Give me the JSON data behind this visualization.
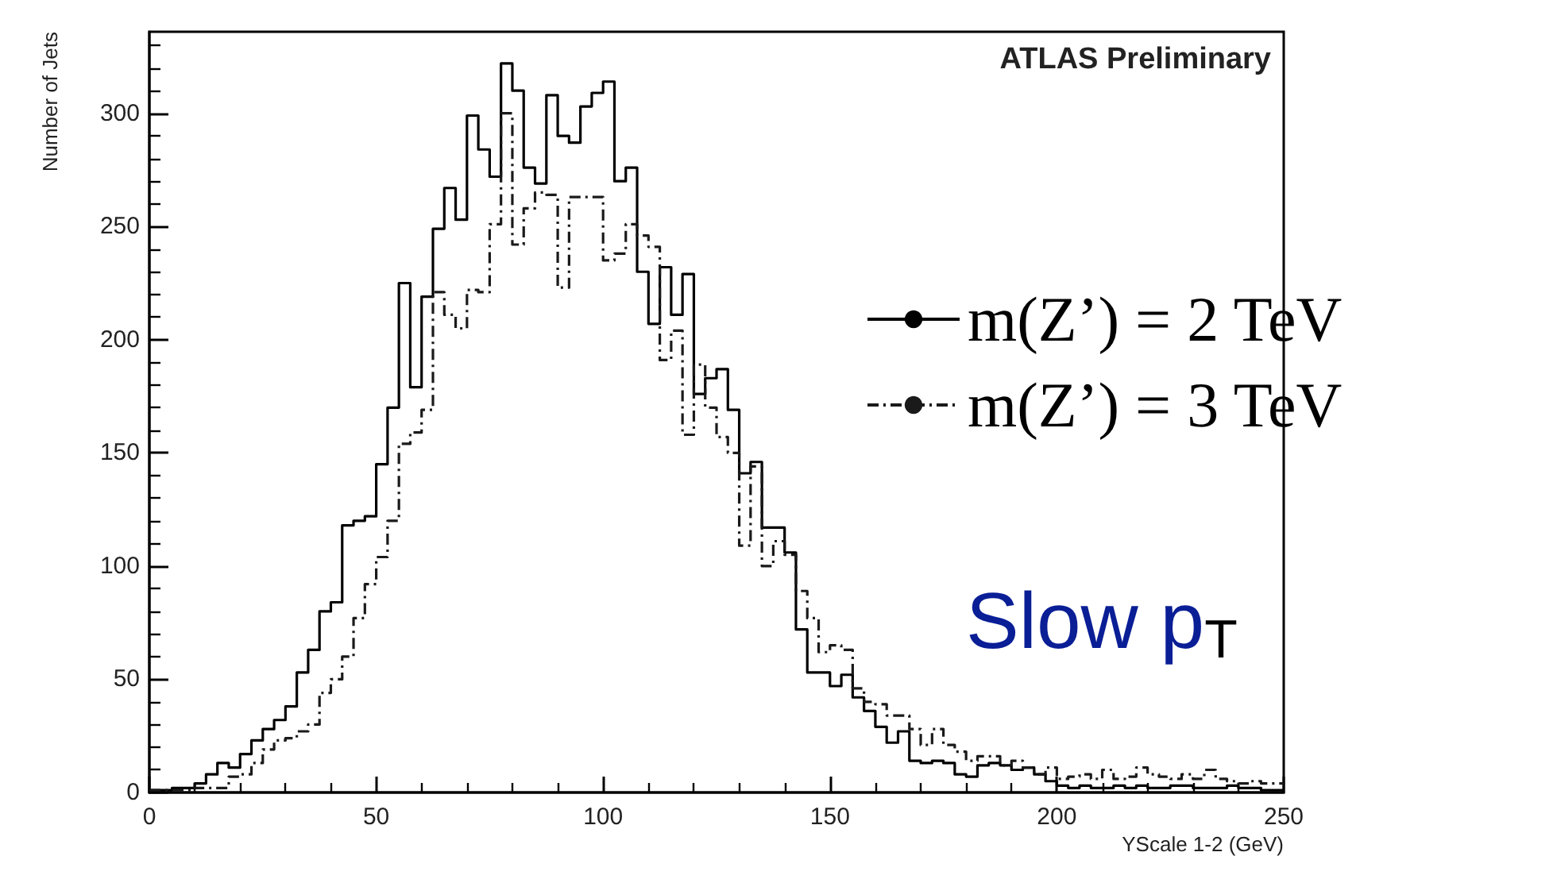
{
  "chart_data": {
    "type": "histogram",
    "xlabel": "YScale 1-2 (GeV)",
    "ylabel": "Number of Jets",
    "annotations": [
      "ATLAS Preliminary",
      "Slow p$_{T}$"
    ],
    "bins": [
      0,
      2.5,
      5,
      7.5,
      10,
      12.5,
      15,
      17.5,
      20,
      22.5,
      25,
      27.5,
      30,
      32.5,
      35,
      37.5,
      40,
      42.5,
      45,
      47.5,
      50,
      52.5,
      55,
      57.5,
      60,
      62.5,
      65,
      67.5,
      70,
      72.5,
      75,
      77.5,
      80,
      82.5,
      85,
      87.5,
      90,
      92.5,
      95,
      97.5,
      100,
      102.5,
      105,
      107.5,
      110,
      112.5,
      115,
      117.5,
      120,
      122.5,
      125,
      127.5,
      130,
      132.5,
      135,
      137.5,
      140,
      142.5,
      145,
      147.5,
      150,
      152.5,
      155,
      157.5,
      160,
      162.5,
      165,
      167.5,
      170,
      172.5,
      175,
      177.5,
      180,
      182.5,
      185,
      187.5,
      190,
      192.5,
      195,
      197.5,
      200,
      202.5,
      205,
      207.5,
      210,
      212.5,
      215,
      217.5,
      220,
      222.5,
      225,
      227.5,
      230,
      232.5,
      235,
      237.5,
      240,
      242.5,
      245,
      247.5,
      250
    ],
    "series": [
      {
        "name": "m(Z’) = 2 TeV",
        "color": "#000000",
        "line_style": "solid",
        "values": [
          1,
          1,
          2,
          2,
          4,
          8,
          13,
          11,
          17,
          23,
          28,
          32,
          38,
          53,
          63,
          80,
          84,
          118,
          120,
          122,
          145,
          170,
          225,
          179,
          219,
          249,
          267,
          253,
          299,
          284,
          272,
          322,
          310,
          276,
          269,
          308,
          290,
          287,
          303,
          309,
          314,
          270,
          276,
          230,
          207,
          232,
          211,
          229,
          176,
          183,
          187,
          169,
          141,
          146,
          117,
          117,
          106,
          72,
          53,
          53,
          47,
          52,
          42,
          36,
          29,
          22,
          27,
          14,
          13,
          14,
          13,
          8,
          7,
          12,
          13,
          12,
          10,
          11,
          8,
          5,
          3,
          2,
          3,
          2,
          2,
          3,
          2,
          3,
          2,
          2,
          3,
          3,
          2,
          2,
          2,
          3,
          2,
          2,
          1,
          1
        ]
      },
      {
        "name": "m(Z’) = 3 TeV",
        "color": "#1a1a1a",
        "line_style": "dashed",
        "values": [
          1,
          1,
          1,
          1,
          2,
          2,
          2,
          7,
          8,
          13,
          19,
          23,
          24,
          27,
          30,
          44,
          50,
          60,
          77,
          92,
          104,
          120,
          154,
          159,
          169,
          221,
          211,
          205,
          222,
          221,
          251,
          300,
          242,
          258,
          265,
          264,
          223,
          263,
          263,
          263,
          235,
          238,
          251,
          246,
          241,
          191,
          204,
          158,
          189,
          170,
          157,
          150,
          109,
          144,
          100,
          111,
          105,
          89,
          77,
          62,
          65,
          63,
          46,
          40,
          39,
          34,
          34,
          28,
          21,
          28,
          21,
          18,
          14,
          16,
          16,
          12,
          14,
          11,
          8,
          11,
          6,
          7,
          8,
          6,
          10,
          6,
          7,
          11,
          8,
          7,
          6,
          8,
          6,
          10,
          6,
          5,
          4,
          5,
          4,
          4
        ]
      }
    ],
    "xlim": [
      0,
      250
    ],
    "xticks": [
      0,
      50,
      100,
      150,
      200,
      250
    ],
    "ylim": [
      0,
      336
    ],
    "yticks": [
      0,
      50,
      100,
      150,
      200,
      250,
      300
    ],
    "grid": false,
    "legend": "right"
  }
}
